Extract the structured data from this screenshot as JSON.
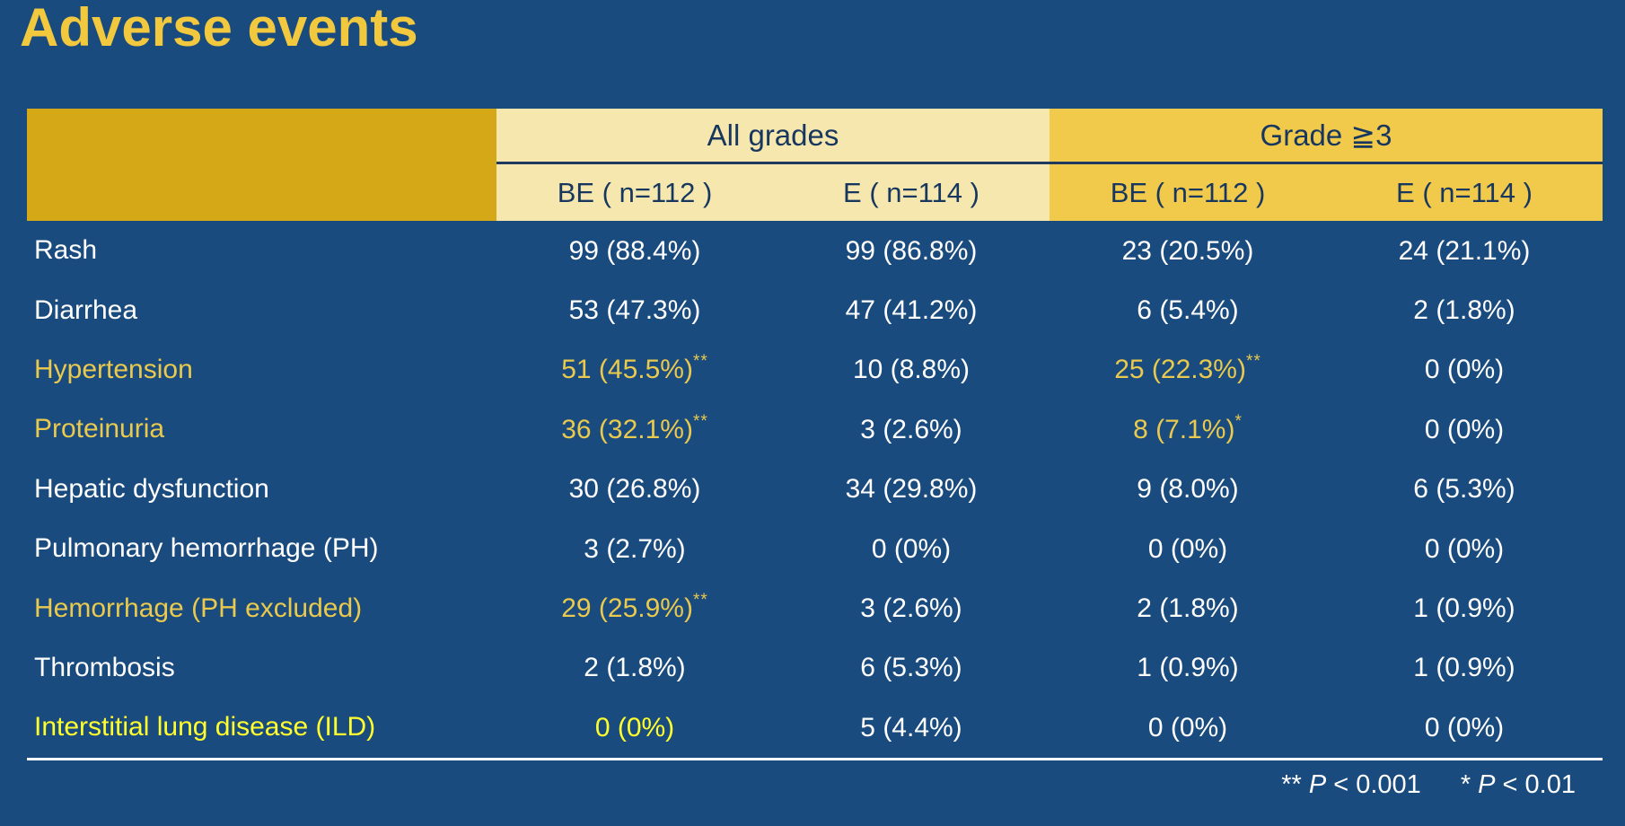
{
  "title": "Adverse events",
  "colors": {
    "background": "#1A4B7E",
    "title_gold": "#F1C83E",
    "header_corner_gold": "#D5A817",
    "all_grades_cream": "#F6E7AF",
    "grade3_gold": "#F1C94B",
    "header_text_navy": "#17375F",
    "highlight_gold": "#E9C94E",
    "highlight_yellow": "#FFFF2D",
    "body_text": "#FFFFFF"
  },
  "table": {
    "col_groups": [
      {
        "label": "All grades"
      },
      {
        "label": "Grade ≧3"
      }
    ],
    "sub_headers": [
      "BE ( n=112 )",
      "E ( n=114 )",
      "BE ( n=112 )",
      "E ( n=114 )"
    ],
    "rows": [
      {
        "label": "Rash",
        "cells": [
          {
            "v": "99 (88.4%)"
          },
          {
            "v": "99 (86.8%)"
          },
          {
            "v": "23 (20.5%)"
          },
          {
            "v": "24 (21.1%)"
          }
        ]
      },
      {
        "label": "Diarrhea",
        "cells": [
          {
            "v": "53 (47.3%)"
          },
          {
            "v": "47 (41.2%)"
          },
          {
            "v": "6 (5.4%)"
          },
          {
            "v": "2 (1.8%)"
          }
        ]
      },
      {
        "label": "Hypertension",
        "cells": [
          {
            "v": "51 (45.5%)",
            "sup": "**"
          },
          {
            "v": "10 (8.8%)"
          },
          {
            "v": "25 (22.3%)",
            "sup": "**"
          },
          {
            "v": "0 (0%)"
          }
        ]
      },
      {
        "label": "Proteinuria",
        "cells": [
          {
            "v": "36 (32.1%)",
            "sup": "**"
          },
          {
            "v": "3 (2.6%)"
          },
          {
            "v": "8 (7.1%)",
            "sup": "*"
          },
          {
            "v": "0 (0%)"
          }
        ]
      },
      {
        "label": "Hepatic dysfunction",
        "cells": [
          {
            "v": "30 (26.8%)"
          },
          {
            "v": "34 (29.8%)"
          },
          {
            "v": "9 (8.0%)"
          },
          {
            "v": "6 (5.3%)"
          }
        ]
      },
      {
        "label": "Pulmonary hemorrhage (PH)",
        "cells": [
          {
            "v": "3 (2.7%)"
          },
          {
            "v": "0 (0%)"
          },
          {
            "v": "0 (0%)"
          },
          {
            "v": "0 (0%)"
          }
        ]
      },
      {
        "label": "Hemorrhage (PH excluded)",
        "cells": [
          {
            "v": "29 (25.9%)",
            "sup": "**"
          },
          {
            "v": "3 (2.6%)"
          },
          {
            "v": "2 (1.8%)"
          },
          {
            "v": "1 (0.9%)"
          }
        ]
      },
      {
        "label": "Thrombosis",
        "cells": [
          {
            "v": "2 (1.8%)"
          },
          {
            "v": "6 (5.3%)"
          },
          {
            "v": "1 (0.9%)"
          },
          {
            "v": "1 (0.9%)"
          }
        ]
      },
      {
        "label": "Interstitial lung disease (ILD)",
        "cells": [
          {
            "v": "0 (0%)"
          },
          {
            "v": "5 (4.4%)"
          },
          {
            "v": "0 (0%)"
          },
          {
            "v": "0 (0%)"
          }
        ]
      }
    ],
    "footnote": {
      "sig2_stars": "** ",
      "sig2_p": "P",
      "sig2_rest": " < 0.001",
      "sig1_stars": "* ",
      "sig1_p": "P",
      "sig1_rest": " < 0.01"
    }
  }
}
